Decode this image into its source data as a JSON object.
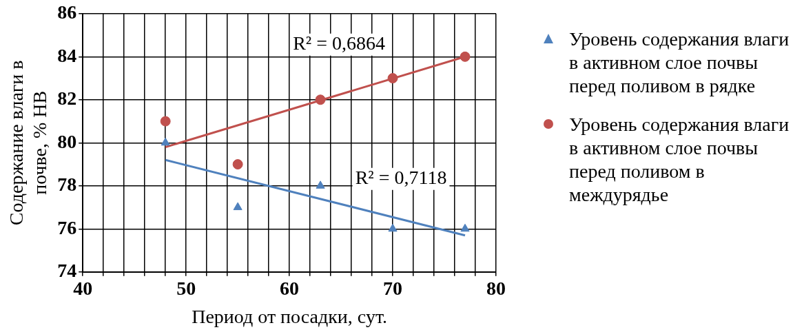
{
  "chart_data": {
    "type": "scatter",
    "xlabel": "Период от посадки, сут.",
    "ylabel": "Содержание влаги в почве, % НВ",
    "xlim": [
      40,
      80
    ],
    "xticks": [
      40,
      {
        "value": 42,
        "label": null
      },
      {
        "value": 44,
        "label": null
      },
      {
        "value": 46,
        "label": null
      },
      {
        "value": 48,
        "label": null
      },
      50,
      {
        "value": 52,
        "label": null
      },
      {
        "value": 54,
        "label": null
      },
      {
        "value": 56,
        "label": null
      },
      {
        "value": 58,
        "label": null
      },
      60,
      {
        "value": 62,
        "label": null
      },
      {
        "value": 64,
        "label": null
      },
      {
        "value": 66,
        "label": null
      },
      {
        "value": 68,
        "label": null
      },
      70,
      {
        "value": 72,
        "label": null
      },
      {
        "value": 74,
        "label": null
      },
      {
        "value": 76,
        "label": null
      },
      {
        "value": 78,
        "label": null
      },
      80
    ],
    "ylim": [
      74,
      86
    ],
    "yticks": [
      74,
      76,
      78,
      80,
      82,
      84,
      86
    ],
    "grid": true,
    "legend": "right",
    "series": [
      {
        "name": "Уровень содержания влаги в активном слое почвы перед поливом в рядке",
        "color": "#4f81bd",
        "marker": "triangle",
        "x": [
          48,
          55,
          63,
          70,
          77
        ],
        "values": [
          80,
          77,
          78,
          76,
          76
        ]
      },
      {
        "name": "Уровень содержания влаги в активном слое почвы перед поливом в междурядье",
        "color": "#c0504d",
        "marker": "circle",
        "x": [
          48,
          55,
          63,
          70,
          77
        ],
        "values": [
          81,
          79,
          82,
          83,
          84
        ]
      },
      {
        "type": "line",
        "color": "#4f81bd",
        "marker": "none",
        "x": [
          48,
          77
        ],
        "values": [
          79.2,
          75.7
        ]
      },
      {
        "type": "line",
        "color": "#c0504d",
        "marker": "none",
        "x": [
          48,
          77
        ],
        "values": [
          79.8,
          84
        ]
      }
    ],
    "annotations": [
      "R² = 0,6864",
      "R² = 0,7118"
    ]
  }
}
